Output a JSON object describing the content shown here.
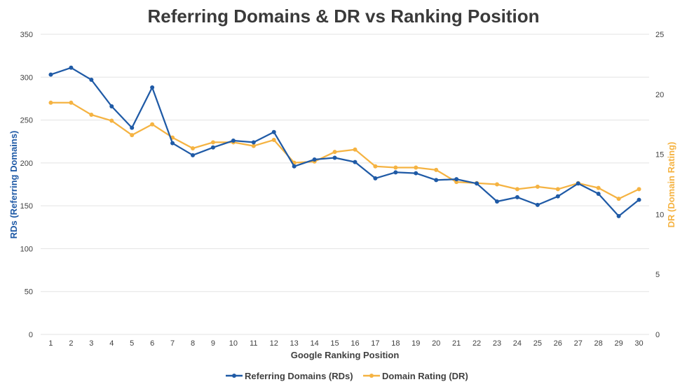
{
  "chart_data": {
    "type": "line",
    "title": "Referring Domains & DR vs Ranking Position",
    "xlabel": "Google Ranking Position",
    "ylabel": "RDs (Referring Domains)",
    "y2label": "DR (Domain Rating)",
    "ylim": [
      0,
      350
    ],
    "y2lim": [
      0,
      25
    ],
    "yticks": [
      0,
      50,
      100,
      150,
      200,
      250,
      300,
      350
    ],
    "y2ticks": [
      0,
      5,
      10,
      15,
      20,
      25
    ],
    "grid": true,
    "legend_position": "bottom",
    "categories": [
      1,
      2,
      3,
      4,
      5,
      6,
      7,
      8,
      9,
      10,
      11,
      12,
      13,
      14,
      15,
      16,
      17,
      18,
      19,
      20,
      21,
      22,
      23,
      24,
      25,
      26,
      27,
      28,
      29,
      30
    ],
    "series": [
      {
        "name": "Referring Domains (RDs)",
        "axis": "left",
        "color": "#1f5aa6",
        "values": [
          303,
          311,
          297,
          266,
          241,
          288,
          223,
          209,
          218,
          226,
          224,
          236,
          196,
          204,
          206,
          201,
          182,
          189,
          188,
          180,
          181,
          176,
          155,
          160,
          151,
          161,
          176,
          164,
          138,
          157
        ]
      },
      {
        "name": "Domain Rating (DR)",
        "axis": "right",
        "color": "#f5b342",
        "values": [
          19.3,
          19.3,
          18.3,
          17.8,
          16.6,
          17.5,
          16.4,
          15.5,
          16.0,
          16.0,
          15.7,
          16.2,
          14.3,
          14.4,
          15.2,
          15.4,
          14.0,
          13.9,
          13.9,
          13.7,
          12.7,
          12.6,
          12.5,
          12.1,
          12.3,
          12.1,
          12.6,
          12.2,
          11.3,
          12.1
        ]
      }
    ]
  }
}
